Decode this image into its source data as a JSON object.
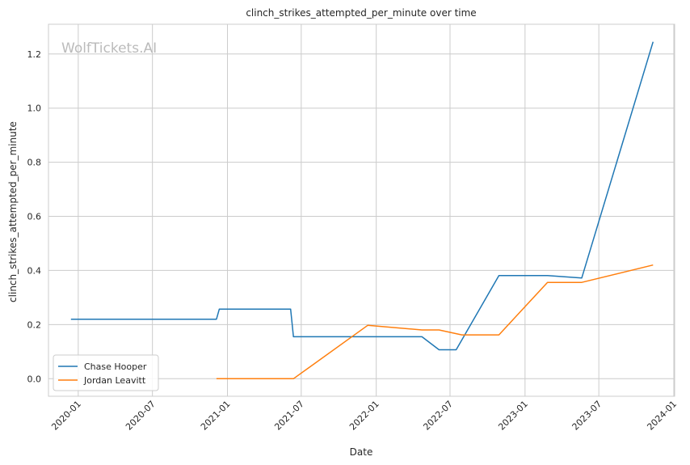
{
  "chart_data": {
    "type": "line",
    "title": "clinch_strikes_attempted_per_minute over time",
    "xlabel": "Date",
    "ylabel": "clinch_strikes_attempted_per_minute",
    "watermark": "WolfTickets.AI",
    "x_ticks": [
      "2020-01",
      "2020-07",
      "2021-01",
      "2021-07",
      "2022-01",
      "2022-07",
      "2023-01",
      "2023-07",
      "2024-01"
    ],
    "y_ticks": [
      "0.0",
      "0.2",
      "0.4",
      "0.6",
      "0.8",
      "1.0",
      "1.2"
    ],
    "xlim": [
      "2019-10-20",
      "2024-01-03"
    ],
    "ylim": [
      -0.065,
      1.31
    ],
    "grid": true,
    "legend_position": "bottom-left",
    "series": [
      {
        "name": "Chase Hooper",
        "color": "#1f77b4",
        "points": [
          {
            "x": "2019-12-14",
            "y": 0.22
          },
          {
            "x": "2020-12-05",
            "y": 0.22
          },
          {
            "x": "2020-12-12",
            "y": 0.257
          },
          {
            "x": "2021-06-05",
            "y": 0.257
          },
          {
            "x": "2021-06-12",
            "y": 0.155
          },
          {
            "x": "2022-04-23",
            "y": 0.155
          },
          {
            "x": "2022-06-04",
            "y": 0.107
          },
          {
            "x": "2022-07-16",
            "y": 0.107
          },
          {
            "x": "2022-10-29",
            "y": 0.381
          },
          {
            "x": "2023-02-25",
            "y": 0.381
          },
          {
            "x": "2023-05-20",
            "y": 0.372
          },
          {
            "x": "2023-11-11",
            "y": 1.245
          }
        ]
      },
      {
        "name": "Jordan Leavitt",
        "color": "#ff7f0e",
        "points": [
          {
            "x": "2020-12-05",
            "y": 0.0
          },
          {
            "x": "2021-06-12",
            "y": 0.0
          },
          {
            "x": "2021-12-11",
            "y": 0.197
          },
          {
            "x": "2022-04-23",
            "y": 0.18
          },
          {
            "x": "2022-06-04",
            "y": 0.18
          },
          {
            "x": "2022-07-30",
            "y": 0.162
          },
          {
            "x": "2022-10-29",
            "y": 0.162
          },
          {
            "x": "2023-02-25",
            "y": 0.356
          },
          {
            "x": "2023-05-20",
            "y": 0.356
          },
          {
            "x": "2023-11-11",
            "y": 0.42
          }
        ]
      }
    ]
  }
}
